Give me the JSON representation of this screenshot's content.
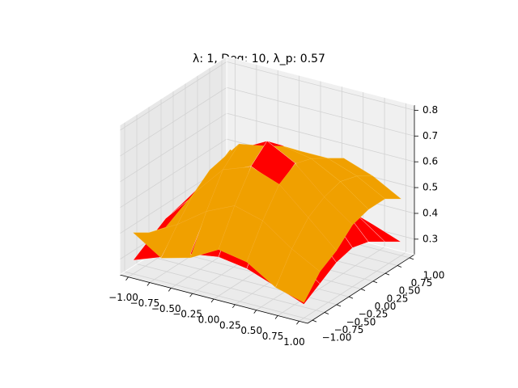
{
  "chart_data": {
    "type": "surface",
    "title": "λ: 1, Deg: 10, λ_p: 0.57",
    "x": [
      -1,
      -0.67,
      -0.33,
      0,
      0.33,
      0.67,
      1
    ],
    "y": [
      -1,
      -0.67,
      -0.33,
      0,
      0.33,
      0.67,
      1
    ],
    "xlim": [
      -1.1,
      1.1
    ],
    "ylim": [
      -1.1,
      1.1
    ],
    "zlim": [
      0.24,
      0.82
    ],
    "xticks": [
      {
        "value": -1,
        "label": "−1.00"
      },
      {
        "value": -0.75,
        "label": "−0.75"
      },
      {
        "value": -0.5,
        "label": "−0.50"
      },
      {
        "value": -0.25,
        "label": "−0.25"
      },
      {
        "value": 0,
        "label": "0.00"
      },
      {
        "value": 0.25,
        "label": "0.25"
      },
      {
        "value": 0.5,
        "label": "0.50"
      },
      {
        "value": 0.75,
        "label": "0.75"
      },
      {
        "value": 1,
        "label": "1.00"
      }
    ],
    "yticks": [
      {
        "value": -1,
        "label": "−1.00"
      },
      {
        "value": -0.75,
        "label": "−0.75"
      },
      {
        "value": -0.5,
        "label": "−0.50"
      },
      {
        "value": -0.25,
        "label": "−0.25"
      },
      {
        "value": 0,
        "label": "0.00"
      },
      {
        "value": 0.25,
        "label": "0.25"
      },
      {
        "value": 0.5,
        "label": "0.50"
      },
      {
        "value": 0.75,
        "label": "0.75"
      },
      {
        "value": 1,
        "label": "1.00"
      }
    ],
    "zticks": [
      0.3,
      0.4,
      0.5,
      0.6,
      0.7,
      0.8
    ],
    "grid": true,
    "series": [
      {
        "color": "#ff0000",
        "values": [
          [
            0.293,
            0.333,
            0.374,
            0.391,
            0.374,
            0.333,
            0.293
          ],
          [
            0.333,
            0.41,
            0.491,
            0.524,
            0.491,
            0.41,
            0.333
          ],
          [
            0.374,
            0.491,
            0.612,
            0.662,
            0.612,
            0.491,
            0.374
          ],
          [
            0.391,
            0.524,
            0.662,
            0.72,
            0.662,
            0.524,
            0.391
          ],
          [
            0.374,
            0.491,
            0.612,
            0.662,
            0.612,
            0.491,
            0.374
          ],
          [
            0.333,
            0.41,
            0.491,
            0.524,
            0.491,
            0.41,
            0.333
          ],
          [
            0.293,
            0.333,
            0.374,
            0.391,
            0.374,
            0.333,
            0.293
          ]
        ]
      },
      {
        "color": "#f0a000",
        "values": [
          [
            0.4,
            0.33,
            0.36,
            0.42,
            0.4,
            0.33,
            0.3
          ],
          [
            0.36,
            0.42,
            0.5,
            0.55,
            0.52,
            0.44,
            0.38
          ],
          [
            0.34,
            0.5,
            0.62,
            0.66,
            0.62,
            0.52,
            0.42
          ],
          [
            0.36,
            0.55,
            0.68,
            0.7,
            0.66,
            0.56,
            0.48
          ],
          [
            0.4,
            0.52,
            0.62,
            0.66,
            0.64,
            0.58,
            0.5
          ],
          [
            0.44,
            0.46,
            0.54,
            0.6,
            0.6,
            0.56,
            0.5
          ],
          [
            0.48,
            0.42,
            0.44,
            0.52,
            0.56,
            0.52,
            0.46
          ]
        ]
      }
    ]
  }
}
